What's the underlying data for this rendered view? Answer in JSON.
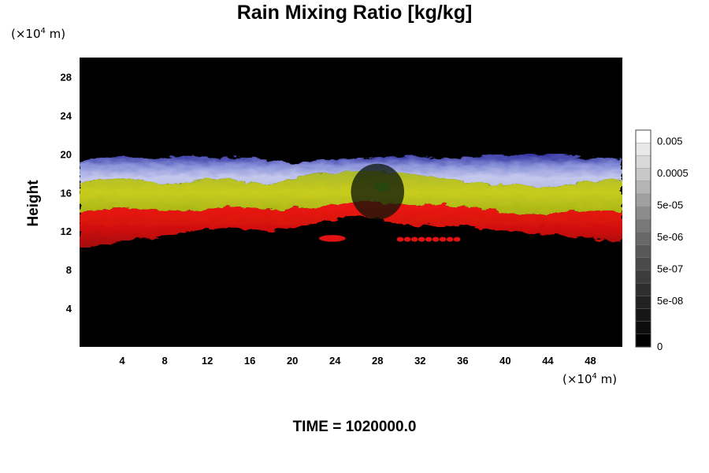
{
  "chart_data": {
    "type": "heatmap",
    "title": "Rain Mixing Ratio [kg/kg]",
    "ylabel": "Height",
    "y_unit": "(×10⁴ m)",
    "x_unit": "(×10⁴ m)",
    "x_ticks": [
      "4",
      "8",
      "12",
      "16",
      "20",
      "24",
      "28",
      "32",
      "36",
      "40",
      "44",
      "48"
    ],
    "y_ticks": [
      "4",
      "8",
      "12",
      "16",
      "20",
      "24",
      "28"
    ],
    "xlim": [
      0,
      51
    ],
    "ylim": [
      0,
      30
    ],
    "colorbar_labels": [
      "0.005",
      "0.0005",
      "5e-05",
      "5e-06",
      "5e-07",
      "5e-08",
      "0"
    ],
    "colorbar_colors": [
      "#ffffff",
      "#e8e8e8",
      "#d8d8d8",
      "#c8c8c8",
      "#b4b4b4",
      "#a0a0a0",
      "#8c8c8c",
      "#787878",
      "#686868",
      "#585858",
      "#4a4a4a",
      "#3c3c3c",
      "#2e2e2e",
      "#222222",
      "#161616",
      "#0c0c0c",
      "#000000"
    ],
    "layer_colors": {
      "top": "#3a3aa8",
      "upper": "#c0c4e8",
      "middle": "#b4c424",
      "lower": "#e01010",
      "background": "#000000"
    },
    "bands": [
      {
        "name": "blue-white",
        "x": [
          0,
          2,
          4,
          6,
          8,
          10,
          12,
          14,
          16,
          18,
          20,
          22,
          24,
          26,
          28,
          30,
          32,
          34,
          36,
          38,
          40,
          42,
          44,
          46,
          48,
          51
        ],
        "y_bottom": [
          17.0,
          17.2,
          17.5,
          17.2,
          16.8,
          17.0,
          17.5,
          17.4,
          17.0,
          16.8,
          17.5,
          18.0,
          18.0,
          18.2,
          18.3,
          18.0,
          17.8,
          17.5,
          17.2,
          17.0,
          16.8,
          16.6,
          16.5,
          16.8,
          17.2,
          17.4
        ],
        "y_top": [
          19.3,
          19.5,
          19.8,
          19.5,
          19.6,
          19.8,
          19.6,
          19.7,
          19.6,
          19.4,
          19.0,
          19.3,
          19.5,
          19.5,
          19.7,
          19.8,
          19.7,
          19.6,
          19.6,
          19.8,
          19.8,
          20.0,
          20.0,
          19.8,
          19.6,
          19.4
        ]
      },
      {
        "name": "yellow-green",
        "x": [
          0,
          2,
          4,
          6,
          8,
          10,
          12,
          14,
          16,
          18,
          20,
          22,
          24,
          26,
          28,
          30,
          32,
          34,
          36,
          38,
          40,
          42,
          44,
          46,
          48,
          51
        ],
        "y_bottom": [
          14.0,
          14.2,
          14.5,
          14.3,
          14.2,
          14.0,
          14.3,
          14.4,
          14.5,
          14.2,
          14.3,
          14.5,
          14.8,
          15.0,
          15.0,
          14.8,
          14.6,
          14.8,
          14.5,
          14.2,
          14.0,
          13.8,
          13.8,
          14.0,
          14.0,
          14.0
        ],
        "y_top": [
          17.0,
          17.2,
          17.5,
          17.2,
          16.8,
          17.0,
          17.5,
          17.4,
          17.0,
          16.8,
          17.5,
          18.0,
          18.0,
          18.2,
          18.3,
          18.0,
          17.8,
          17.5,
          17.2,
          17.0,
          16.8,
          16.6,
          16.5,
          16.8,
          17.2,
          17.4
        ]
      },
      {
        "name": "red",
        "x": [
          0,
          2,
          4,
          6,
          8,
          10,
          12,
          14,
          16,
          18,
          20,
          22,
          24,
          26,
          28,
          30,
          32,
          34,
          36,
          38,
          40,
          42,
          44,
          46,
          48,
          51
        ],
        "y_bottom": [
          10.3,
          10.5,
          11.0,
          11.2,
          11.5,
          12.0,
          12.2,
          12.3,
          12.2,
          12.0,
          12.3,
          12.8,
          13.2,
          13.5,
          13.4,
          12.8,
          12.5,
          12.5,
          12.6,
          12.3,
          12.0,
          11.8,
          11.6,
          11.5,
          11.2,
          10.8
        ],
        "y_top": [
          14.0,
          14.2,
          14.5,
          14.3,
          14.2,
          14.0,
          14.3,
          14.4,
          14.5,
          14.2,
          14.3,
          14.5,
          14.8,
          15.0,
          15.0,
          14.8,
          14.6,
          14.8,
          14.5,
          14.2,
          14.0,
          13.8,
          13.8,
          14.0,
          14.0,
          14.0
        ]
      }
    ],
    "gap_x": [
      25.5,
      30.5
    ],
    "red_patches": [
      {
        "x": [
          22.5,
          25.0
        ],
        "y": [
          10.9,
          11.6
        ]
      },
      {
        "x": [
          29.8,
          35.8
        ],
        "y": [
          10.9,
          11.4
        ]
      }
    ]
  },
  "time_label": "TIME = 1020000.0"
}
